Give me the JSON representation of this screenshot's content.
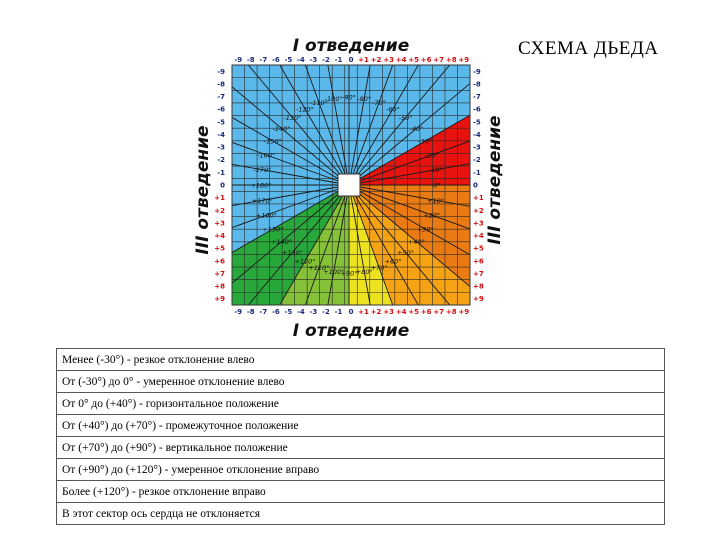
{
  "title": "СХЕМА ДЬЕДА",
  "axis_top": "I отведение",
  "axis_bottom": "I отведение",
  "axis_left": "III отведение",
  "axis_right": "III отведение",
  "scale": [
    "-9",
    "-8",
    "-7",
    "-6",
    "-5",
    "-4",
    "-3",
    "-2",
    "-1",
    "0",
    "+1",
    "+2",
    "+3",
    "+4",
    "+5",
    "+6",
    "+7",
    "+8",
    "+9"
  ],
  "angle_labels": [
    {
      "text": "-90°",
      "dir": -90
    },
    {
      "text": "-80°",
      "dir": -80
    },
    {
      "text": "-70°",
      "dir": -70
    },
    {
      "text": "-60°",
      "dir": -60
    },
    {
      "text": "-50°",
      "dir": -50
    },
    {
      "text": "-40°",
      "dir": -40
    },
    {
      "text": "-30°",
      "dir": -30
    },
    {
      "text": "-20°",
      "dir": -20
    },
    {
      "text": "-10°",
      "dir": -10
    },
    {
      "text": "0°",
      "dir": 0
    },
    {
      "text": "+10°",
      "dir": 10
    },
    {
      "text": "+20°",
      "dir": 20
    },
    {
      "text": "+30°",
      "dir": 30
    },
    {
      "text": "+40°",
      "dir": 40
    },
    {
      "text": "+50°",
      "dir": 50
    },
    {
      "text": "+60°",
      "dir": 60
    },
    {
      "text": "+70°",
      "dir": 70
    },
    {
      "text": "+80°",
      "dir": 80
    },
    {
      "text": "+90°",
      "dir": 90
    },
    {
      "text": "+100°",
      "dir": 100
    },
    {
      "text": "+110°",
      "dir": 110
    },
    {
      "text": "+120°",
      "dir": 120
    },
    {
      "text": "+130°",
      "dir": 130
    },
    {
      "text": "+140°",
      "dir": 140
    },
    {
      "text": "+150°",
      "dir": 150
    },
    {
      "text": "+160°",
      "dir": 160
    },
    {
      "text": "+170°",
      "dir": 170
    },
    {
      "text": "+180°",
      "dir": 180
    },
    {
      "text": "-100°",
      "dir": -100
    },
    {
      "text": "-110°",
      "dir": -110
    },
    {
      "text": "-120°",
      "dir": -120
    },
    {
      "text": "-130°",
      "dir": -130
    },
    {
      "text": "-140°",
      "dir": -140
    },
    {
      "text": "-150°",
      "dir": -150
    },
    {
      "text": "-160°",
      "dir": -160
    },
    {
      "text": "-170°",
      "dir": -170
    }
  ],
  "sectors": [
    {
      "name": "strong-left-deviation",
      "from": -180,
      "to": -30,
      "color": "#5bb8ea"
    },
    {
      "name": "moderate-left-deviation",
      "from": -30,
      "to": 0,
      "color": "#e8120f"
    },
    {
      "name": "horizontal-position",
      "from": 0,
      "to": 40,
      "color": "#ea7a12"
    },
    {
      "name": "intermediate-position",
      "from": 40,
      "to": 70,
      "color": "#f5a214"
    },
    {
      "name": "vertical-position",
      "from": 70,
      "to": 90,
      "color": "#ece220"
    },
    {
      "name": "moderate-right-deviation",
      "from": 90,
      "to": 120,
      "color": "#86c238"
    },
    {
      "name": "strong-right-deviation",
      "from": 120,
      "to": 150,
      "color": "#28a73a"
    }
  ],
  "legend": [
    {
      "text": "Менее (-30°) - резкое отклонение влево",
      "color": "#5bb8ea"
    },
    {
      "text": "От (-30°) до 0° - умеренное отклонение влево",
      "color": "#e8120f"
    },
    {
      "text": "От 0° до (+40°) - горизонтальное положение",
      "color": "#ea7a12"
    },
    {
      "text": "От (+40°) до (+70°) - промежуточное положение",
      "color": "#f5a214"
    },
    {
      "text": "От (+70°) до (+90°) - вертикальное положение",
      "color": "#ece220"
    },
    {
      "text": "От (+90°) до (+120°) - умеренное отклонение вправо",
      "color": "#86c238"
    },
    {
      "text": "Более (+120°) - резкое отклонение вправо",
      "color": "#28a73a"
    },
    {
      "text": "В этот сектор ось сердца не отклоняется",
      "color": "#ffffff"
    }
  ]
}
